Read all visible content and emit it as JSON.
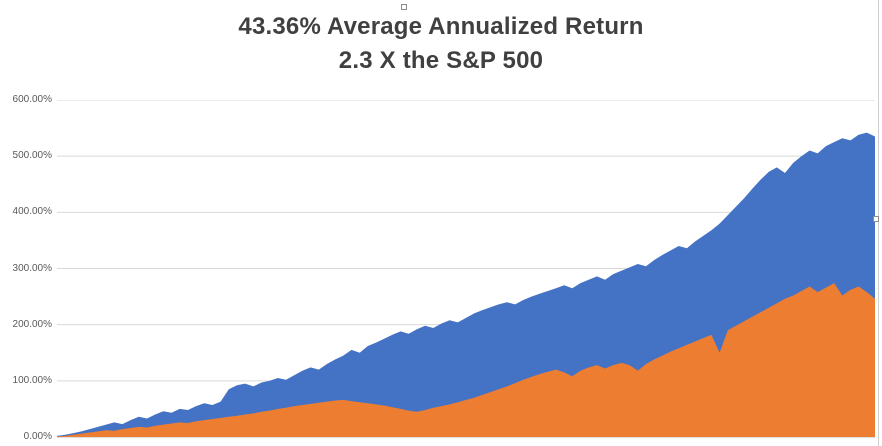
{
  "chart": {
    "title_line1": "43.36% Average Annualized Return",
    "title_line2": "2.3 X the S&P 500"
  },
  "colors": {
    "blue_series": "#4472C4",
    "orange_series": "#ED7D31",
    "gridline": "#D9D9D9",
    "axis_line": "#BFBFBF",
    "axis_text": "#595959",
    "title_text": "#404040"
  },
  "chart_data": {
    "type": "area",
    "title": "43.36% Average Annualized Return",
    "subtitle": "2.3 X the S&P 500",
    "xlabel": "",
    "ylabel": "",
    "ylim": [
      0,
      600
    ],
    "y_tick_labels": [
      "0.00%",
      "100.00%",
      "200.00%",
      "300.00%",
      "400.00%",
      "500.00%",
      "600.00%"
    ],
    "y_tick_values": [
      0,
      100,
      200,
      300,
      400,
      500,
      600
    ],
    "grid": true,
    "legend_position": "none",
    "series": [
      {
        "name": "blue-area-series",
        "color": "#4472C4",
        "values": [
          2,
          4,
          7,
          10,
          14,
          18,
          22,
          26,
          23,
          30,
          36,
          33,
          40,
          46,
          43,
          50,
          48,
          55,
          60,
          57,
          63,
          85,
          92,
          95,
          90,
          97,
          100,
          105,
          102,
          110,
          118,
          124,
          120,
          130,
          138,
          145,
          155,
          150,
          162,
          168,
          175,
          182,
          188,
          184,
          192,
          198,
          194,
          202,
          208,
          204,
          212,
          220,
          226,
          231,
          236,
          240,
          236,
          244,
          250,
          255,
          260,
          265,
          270,
          265,
          274,
          280,
          286,
          280,
          290,
          296,
          302,
          308,
          304,
          315,
          324,
          332,
          340,
          336,
          348,
          358,
          368,
          380,
          395,
          410,
          425,
          442,
          458,
          472,
          480,
          470,
          488,
          500,
          510,
          505,
          518,
          525,
          532,
          528,
          538,
          542,
          535
        ]
      },
      {
        "name": "orange-area-series",
        "color": "#ED7D31",
        "values": [
          1,
          2,
          4,
          6,
          8,
          10,
          12,
          11,
          14,
          16,
          18,
          17,
          20,
          22,
          24,
          26,
          25,
          28,
          30,
          32,
          34,
          36,
          38,
          40,
          42,
          45,
          47,
          50,
          52,
          55,
          57,
          59,
          61,
          63,
          65,
          66,
          64,
          62,
          60,
          58,
          56,
          53,
          50,
          47,
          45,
          48,
          52,
          55,
          58,
          62,
          66,
          70,
          75,
          80,
          85,
          90,
          96,
          102,
          107,
          112,
          116,
          120,
          115,
          108,
          118,
          124,
          128,
          122,
          128,
          132,
          128,
          118,
          130,
          138,
          145,
          152,
          158,
          164,
          170,
          176,
          182,
          150,
          190,
          198,
          206,
          214,
          222,
          230,
          238,
          246,
          252,
          260,
          268,
          258,
          266,
          274,
          252,
          262,
          268,
          258,
          246
        ]
      }
    ]
  }
}
